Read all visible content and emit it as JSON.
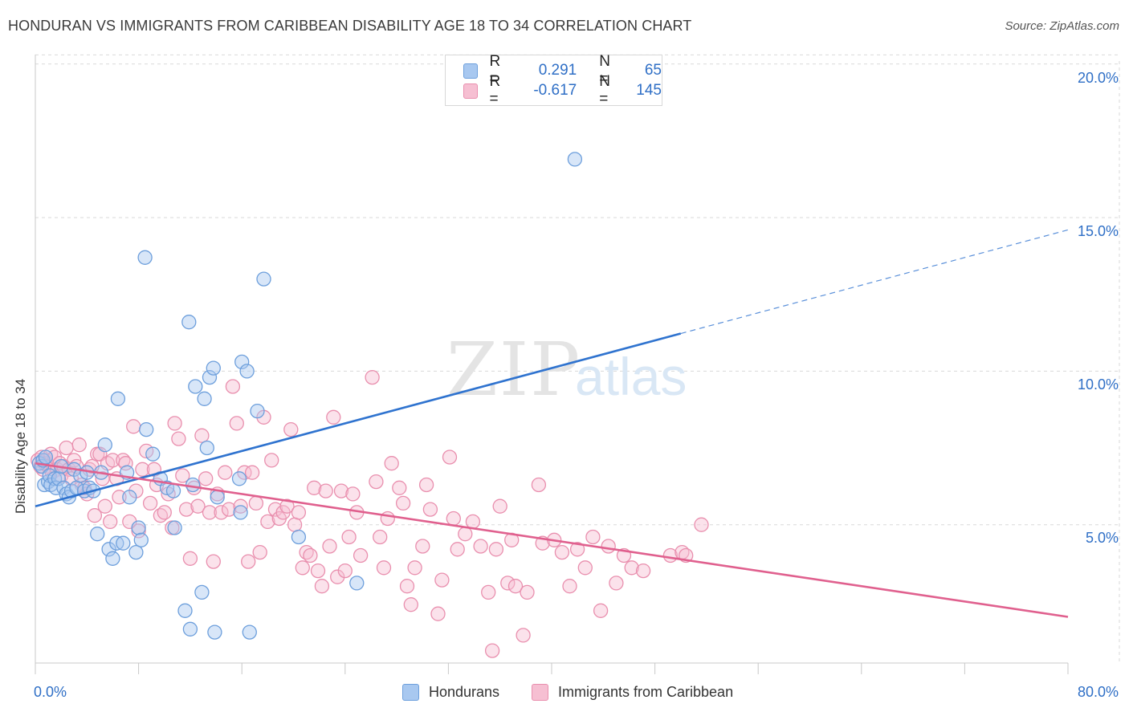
{
  "header": {
    "title": "HONDURAN VS IMMIGRANTS FROM CARIBBEAN DISABILITY AGE 18 TO 34 CORRELATION CHART",
    "source": "Source: ZipAtlas.com"
  },
  "watermark": {
    "zip": "ZIP",
    "atlas": "atlas"
  },
  "colors": {
    "blue_fill": "#a8c8f0",
    "blue_stroke": "#6d9fdc",
    "blue_line": "#2f73cf",
    "pink_fill": "#f6bfd2",
    "pink_stroke": "#e98fae",
    "pink_line": "#e0608e",
    "grid": "#d9d9d9",
    "tick_text": "#2f6fc6"
  },
  "legend_top": {
    "rows": [
      {
        "r_label": "R =",
        "r_value": "0.291",
        "n_label": "N =",
        "n_value": "65"
      },
      {
        "r_label": "R =",
        "r_value": "-0.617",
        "n_label": "N =",
        "n_value": "145"
      }
    ]
  },
  "chart_data": {
    "type": "scatter",
    "title": "HONDURAN VS IMMIGRANTS FROM CARIBBEAN DISABILITY AGE 18 TO 34 CORRELATION CHART",
    "xlabel": "",
    "ylabel": "Disability Age 18 to 34",
    "xlim": [
      0,
      80
    ],
    "ylim": [
      0,
      21
    ],
    "x_tick_labels": [
      "0.0%",
      "80.0%"
    ],
    "y_ticks": [
      {
        "value": 5,
        "label": "5.0%"
      },
      {
        "value": 10,
        "label": "10.0%"
      },
      {
        "value": 15,
        "label": "15.0%"
      },
      {
        "value": 20,
        "label": "20.0%"
      }
    ],
    "grid": true,
    "legend_position": "bottom",
    "series": [
      {
        "name": "Hondurans",
        "color": "#a8c8f0",
        "points": [
          [
            0.3,
            7.0
          ],
          [
            0.5,
            6.9
          ],
          [
            0.6,
            7.1
          ],
          [
            0.7,
            6.3
          ],
          [
            0.8,
            7.2
          ],
          [
            1.0,
            6.4
          ],
          [
            1.1,
            6.6
          ],
          [
            1.2,
            6.3
          ],
          [
            1.5,
            6.5
          ],
          [
            1.6,
            6.2
          ],
          [
            1.8,
            6.5
          ],
          [
            2.0,
            6.9
          ],
          [
            2.2,
            6.2
          ],
          [
            2.4,
            6.0
          ],
          [
            2.6,
            5.9
          ],
          [
            2.8,
            6.1
          ],
          [
            3.0,
            6.8
          ],
          [
            3.2,
            6.2
          ],
          [
            3.5,
            6.6
          ],
          [
            3.8,
            6.1
          ],
          [
            4.0,
            6.7
          ],
          [
            4.2,
            6.2
          ],
          [
            4.5,
            6.1
          ],
          [
            4.8,
            4.7
          ],
          [
            5.1,
            6.7
          ],
          [
            5.4,
            7.6
          ],
          [
            5.7,
            4.2
          ],
          [
            6.0,
            3.9
          ],
          [
            6.3,
            4.4
          ],
          [
            6.4,
            9.1
          ],
          [
            6.8,
            4.4
          ],
          [
            7.1,
            6.7
          ],
          [
            7.3,
            5.9
          ],
          [
            7.8,
            4.1
          ],
          [
            8.0,
            4.9
          ],
          [
            8.2,
            4.5
          ],
          [
            8.5,
            13.7
          ],
          [
            8.6,
            8.1
          ],
          [
            9.1,
            7.3
          ],
          [
            9.7,
            6.5
          ],
          [
            10.2,
            6.2
          ],
          [
            10.7,
            6.1
          ],
          [
            10.8,
            4.9
          ],
          [
            11.6,
            2.2
          ],
          [
            11.9,
            11.6
          ],
          [
            12.0,
            1.6
          ],
          [
            12.2,
            6.3
          ],
          [
            12.4,
            9.5
          ],
          [
            12.9,
            2.8
          ],
          [
            13.1,
            9.1
          ],
          [
            13.3,
            7.5
          ],
          [
            13.5,
            9.8
          ],
          [
            13.8,
            10.1
          ],
          [
            13.9,
            1.5
          ],
          [
            14.1,
            5.9
          ],
          [
            15.8,
            6.5
          ],
          [
            15.9,
            5.4
          ],
          [
            16.0,
            10.3
          ],
          [
            16.4,
            10.0
          ],
          [
            16.6,
            1.5
          ],
          [
            17.2,
            8.7
          ],
          [
            17.7,
            13.0
          ],
          [
            20.4,
            4.6
          ],
          [
            24.9,
            3.1
          ],
          [
            41.8,
            16.9
          ]
        ]
      },
      {
        "name": "Immigrants from Caribbean",
        "color": "#f6bfd2",
        "points": [
          [
            0.2,
            7.1
          ],
          [
            0.4,
            6.9
          ],
          [
            0.5,
            7.2
          ],
          [
            0.6,
            6.8
          ],
          [
            0.7,
            7.0
          ],
          [
            0.8,
            7.1
          ],
          [
            0.9,
            7.0
          ],
          [
            1.0,
            6.9
          ],
          [
            1.2,
            7.3
          ],
          [
            1.3,
            6.7
          ],
          [
            1.5,
            7.2
          ],
          [
            1.7,
            6.8
          ],
          [
            1.9,
            7.0
          ],
          [
            2.0,
            6.6
          ],
          [
            2.2,
            6.9
          ],
          [
            2.4,
            7.5
          ],
          [
            2.6,
            6.8
          ],
          [
            2.8,
            6.5
          ],
          [
            3.0,
            7.1
          ],
          [
            3.2,
            6.9
          ],
          [
            3.4,
            7.6
          ],
          [
            3.6,
            6.3
          ],
          [
            3.8,
            6.2
          ],
          [
            4.0,
            6.0
          ],
          [
            4.2,
            6.8
          ],
          [
            4.4,
            6.9
          ],
          [
            4.6,
            5.3
          ],
          [
            4.8,
            7.3
          ],
          [
            5.0,
            7.3
          ],
          [
            5.2,
            6.5
          ],
          [
            5.4,
            5.6
          ],
          [
            5.6,
            7.0
          ],
          [
            5.8,
            5.1
          ],
          [
            6.0,
            7.1
          ],
          [
            6.3,
            6.5
          ],
          [
            6.5,
            5.9
          ],
          [
            6.8,
            7.1
          ],
          [
            7.0,
            7.0
          ],
          [
            7.3,
            5.1
          ],
          [
            7.6,
            8.2
          ],
          [
            7.8,
            6.1
          ],
          [
            8.0,
            4.8
          ],
          [
            8.3,
            6.8
          ],
          [
            8.6,
            7.4
          ],
          [
            8.9,
            5.7
          ],
          [
            9.2,
            6.8
          ],
          [
            9.4,
            6.3
          ],
          [
            9.7,
            5.3
          ],
          [
            10.0,
            5.4
          ],
          [
            10.3,
            6.0
          ],
          [
            10.6,
            4.9
          ],
          [
            10.8,
            8.3
          ],
          [
            11.1,
            7.8
          ],
          [
            11.4,
            6.6
          ],
          [
            11.7,
            5.5
          ],
          [
            12.0,
            3.9
          ],
          [
            12.3,
            6.2
          ],
          [
            12.6,
            5.6
          ],
          [
            12.9,
            7.9
          ],
          [
            13.2,
            6.5
          ],
          [
            13.5,
            5.4
          ],
          [
            13.8,
            3.8
          ],
          [
            14.1,
            6.0
          ],
          [
            14.4,
            5.4
          ],
          [
            14.7,
            6.7
          ],
          [
            15.0,
            5.5
          ],
          [
            15.3,
            9.5
          ],
          [
            15.6,
            8.3
          ],
          [
            15.9,
            5.6
          ],
          [
            16.2,
            6.7
          ],
          [
            16.5,
            3.8
          ],
          [
            16.8,
            6.7
          ],
          [
            17.1,
            5.7
          ],
          [
            17.4,
            4.1
          ],
          [
            17.7,
            8.5
          ],
          [
            18.0,
            5.1
          ],
          [
            18.3,
            7.1
          ],
          [
            18.6,
            5.5
          ],
          [
            18.9,
            5.2
          ],
          [
            19.2,
            5.4
          ],
          [
            19.5,
            5.6
          ],
          [
            19.8,
            8.1
          ],
          [
            20.1,
            5.0
          ],
          [
            20.4,
            5.4
          ],
          [
            20.7,
            3.6
          ],
          [
            21.0,
            4.1
          ],
          [
            21.3,
            4.0
          ],
          [
            21.6,
            6.2
          ],
          [
            21.9,
            3.5
          ],
          [
            22.2,
            3.0
          ],
          [
            22.5,
            6.1
          ],
          [
            22.8,
            4.3
          ],
          [
            23.1,
            8.5
          ],
          [
            23.4,
            3.3
          ],
          [
            23.7,
            6.1
          ],
          [
            24.0,
            3.5
          ],
          [
            24.3,
            4.6
          ],
          [
            24.6,
            6.0
          ],
          [
            24.9,
            5.4
          ],
          [
            25.2,
            4.0
          ],
          [
            26.1,
            9.8
          ],
          [
            26.4,
            6.4
          ],
          [
            26.7,
            4.6
          ],
          [
            27.0,
            3.6
          ],
          [
            27.3,
            5.2
          ],
          [
            27.6,
            7.0
          ],
          [
            28.2,
            6.2
          ],
          [
            28.5,
            5.7
          ],
          [
            28.8,
            3.0
          ],
          [
            29.1,
            2.4
          ],
          [
            29.4,
            3.6
          ],
          [
            30.0,
            4.3
          ],
          [
            30.3,
            6.3
          ],
          [
            30.6,
            5.5
          ],
          [
            31.2,
            2.1
          ],
          [
            31.5,
            3.2
          ],
          [
            32.1,
            7.2
          ],
          [
            32.4,
            5.2
          ],
          [
            32.7,
            4.2
          ],
          [
            33.3,
            4.7
          ],
          [
            33.9,
            5.1
          ],
          [
            34.5,
            4.3
          ],
          [
            35.1,
            2.8
          ],
          [
            35.4,
            0.9
          ],
          [
            35.7,
            4.2
          ],
          [
            36.0,
            5.6
          ],
          [
            36.6,
            3.1
          ],
          [
            37.2,
            3.0
          ],
          [
            37.8,
            1.4
          ],
          [
            38.1,
            2.8
          ],
          [
            39.0,
            6.3
          ],
          [
            39.3,
            4.4
          ],
          [
            40.2,
            4.5
          ],
          [
            40.8,
            4.1
          ],
          [
            41.4,
            3.0
          ],
          [
            42.0,
            4.2
          ],
          [
            42.6,
            3.6
          ],
          [
            43.2,
            4.6
          ],
          [
            43.8,
            2.2
          ],
          [
            44.4,
            4.3
          ],
          [
            45.0,
            3.1
          ],
          [
            45.6,
            4.0
          ],
          [
            46.2,
            3.6
          ],
          [
            47.1,
            3.5
          ],
          [
            49.2,
            4.0
          ],
          [
            50.1,
            4.1
          ],
          [
            50.4,
            4.0
          ],
          [
            51.6,
            5.0
          ],
          [
            36.9,
            4.5
          ]
        ]
      }
    ],
    "trend_lines": [
      {
        "series": "Hondurans",
        "x_start": 0,
        "y_start": 5.6,
        "x_solid_end": 50,
        "x_end": 80,
        "y_end": 14.6,
        "dashed_after_solid": true
      },
      {
        "series": "Immigrants from Caribbean",
        "x_start": 0,
        "y_start": 7.0,
        "x_end": 80,
        "y_end": 2.0
      }
    ]
  },
  "legend_bottom": {
    "items": [
      {
        "label": "Hondurans"
      },
      {
        "label": "Immigrants from Caribbean"
      }
    ]
  }
}
